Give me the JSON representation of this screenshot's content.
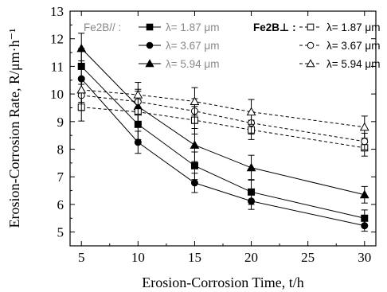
{
  "chart_data": {
    "type": "line",
    "xlabel": "Erosion-Corrosion Time, t/h",
    "ylabel": "Erosion-Corrosion Rate, R/μm·h⁻¹",
    "xlim": [
      4,
      31
    ],
    "ylim": [
      4.5,
      13
    ],
    "x_ticks": [
      5,
      10,
      15,
      20,
      25,
      30
    ],
    "y_ticks": [
      5,
      6,
      7,
      8,
      9,
      10,
      11,
      12,
      13
    ],
    "grid": false,
    "legend_position": "top",
    "legend_groups": [
      "Fe2B// :",
      "Fe2B⊥ :"
    ],
    "series": [
      {
        "name": "λ= 1.87 μm",
        "group": 0,
        "marker": "square",
        "filled": true,
        "dashed": false,
        "x": [
          5,
          10,
          15,
          20,
          30
        ],
        "y": [
          11.0,
          8.9,
          7.4,
          6.45,
          5.5
        ],
        "err": [
          0.65,
          0.55,
          0.5,
          0.45,
          0.3
        ]
      },
      {
        "name": "λ= 3.67 μm",
        "group": 0,
        "marker": "circle",
        "filled": true,
        "dashed": false,
        "x": [
          5,
          10,
          15,
          20,
          30
        ],
        "y": [
          10.55,
          8.25,
          6.78,
          6.12,
          5.23
        ],
        "err": [
          0.65,
          0.4,
          0.35,
          0.3,
          0.2
        ]
      },
      {
        "name": "λ= 5.94 μm",
        "group": 0,
        "marker": "triangle",
        "filled": true,
        "dashed": false,
        "x": [
          5,
          10,
          15,
          20,
          30
        ],
        "y": [
          11.65,
          9.55,
          8.15,
          7.33,
          6.35
        ],
        "err": [
          0.55,
          0.55,
          0.6,
          0.45,
          0.3
        ]
      },
      {
        "name": "λ= 1.87 μm",
        "group": 1,
        "marker": "square",
        "filled": false,
        "dashed": true,
        "x": [
          5,
          10,
          15,
          20,
          30
        ],
        "y": [
          9.52,
          9.35,
          9.05,
          8.7,
          8.05
        ],
        "err": [
          0.5,
          0.45,
          0.5,
          0.35,
          0.3
        ]
      },
      {
        "name": "λ= 3.67 μm",
        "group": 1,
        "marker": "circle",
        "filled": false,
        "dashed": true,
        "x": [
          5,
          10,
          15,
          20,
          30
        ],
        "y": [
          9.95,
          9.72,
          9.38,
          8.95,
          8.28
        ],
        "err": [
          0.55,
          0.45,
          0.45,
          0.4,
          0.3
        ]
      },
      {
        "name": "λ= 5.94 μm",
        "group": 1,
        "marker": "triangle",
        "filled": false,
        "dashed": true,
        "x": [
          5,
          10,
          15,
          20,
          30
        ],
        "y": [
          10.15,
          9.97,
          9.73,
          9.35,
          8.8
        ],
        "err": [
          0.45,
          0.45,
          0.5,
          0.45,
          0.4
        ]
      }
    ]
  }
}
